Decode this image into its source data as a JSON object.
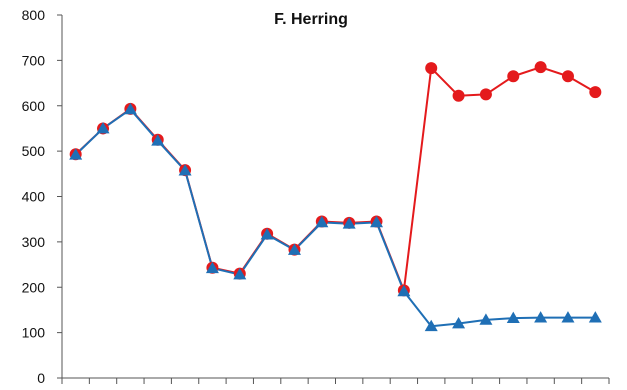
{
  "chart_data": {
    "type": "line",
    "title": "F. Herring",
    "xlabel": "",
    "ylabel": "",
    "ylim": [
      0,
      800
    ],
    "yticks": [
      0,
      100,
      200,
      300,
      400,
      500,
      600,
      700,
      800
    ],
    "xlim": [
      0.5,
      20.5
    ],
    "grid": false,
    "legend": "none",
    "series": [
      {
        "marker": "circle",
        "color": "#e41a1c",
        "x": [
          1,
          2,
          3,
          4,
          5,
          6,
          7,
          8,
          9,
          10,
          11,
          12,
          13,
          14,
          15,
          16,
          17,
          18,
          19,
          20
        ],
        "values": [
          493,
          550,
          593,
          525,
          458,
          243,
          230,
          318,
          283,
          345,
          342,
          345,
          193,
          683,
          622,
          625,
          665,
          685,
          665,
          630
        ]
      },
      {
        "marker": "triangle",
        "color": "#1f6fb5",
        "x": [
          1,
          2,
          3,
          4,
          5,
          6,
          7,
          8,
          9,
          10,
          11,
          12,
          13,
          14,
          15,
          16,
          17,
          18,
          19,
          20
        ],
        "values": [
          492,
          550,
          592,
          523,
          457,
          242,
          228,
          316,
          282,
          343,
          340,
          343,
          191,
          114,
          120,
          128,
          132,
          133,
          133,
          133
        ]
      }
    ]
  }
}
